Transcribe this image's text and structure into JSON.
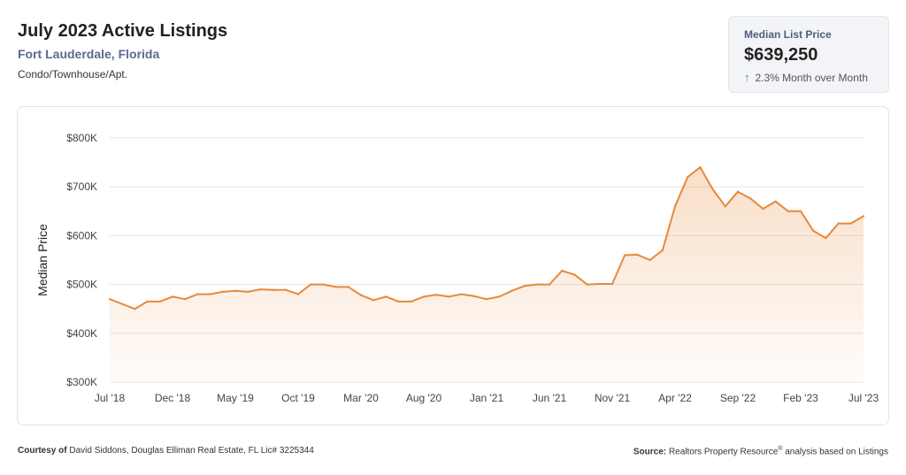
{
  "header": {
    "title": "July 2023 Active Listings",
    "location": "Fort Lauderdale, Florida",
    "property_type": "Condo/Townhouse/Apt."
  },
  "stat_card": {
    "label": "Median List Price",
    "value": "$639,250",
    "change": "2.3% Month over Month",
    "change_direction": "up",
    "change_color": "#2eaa58"
  },
  "footer": {
    "courtesy_label": "Courtesy of",
    "courtesy_text": "David Siddons, Douglas Elliman Real Estate, FL Lic# 3225344",
    "source_label": "Source:",
    "source_text_a": "Realtors Property Resource",
    "source_reg": "®",
    "source_text_b": " analysis based on Listings"
  },
  "chart_data": {
    "type": "area",
    "title": "",
    "ylabel": "Median Price",
    "xlabel": "",
    "ylim": [
      300000,
      800000
    ],
    "y_ticks": [
      {
        "value": 300000,
        "label": "$300K"
      },
      {
        "value": 400000,
        "label": "$400K"
      },
      {
        "value": 500000,
        "label": "$500K"
      },
      {
        "value": 600000,
        "label": "$600K"
      },
      {
        "value": 700000,
        "label": "$700K"
      },
      {
        "value": 800000,
        "label": "$800K"
      }
    ],
    "x_ticks": [
      {
        "index": 0,
        "label": "Jul '18"
      },
      {
        "index": 5,
        "label": "Dec '18"
      },
      {
        "index": 10,
        "label": "May '19"
      },
      {
        "index": 15,
        "label": "Oct '19"
      },
      {
        "index": 20,
        "label": "Mar '20"
      },
      {
        "index": 25,
        "label": "Aug '20"
      },
      {
        "index": 30,
        "label": "Jan '21"
      },
      {
        "index": 35,
        "label": "Jun '21"
      },
      {
        "index": 40,
        "label": "Nov '21"
      },
      {
        "index": 45,
        "label": "Apr '22"
      },
      {
        "index": 50,
        "label": "Sep '22"
      },
      {
        "index": 55,
        "label": "Feb '23"
      },
      {
        "index": 60,
        "label": "Jul '23"
      }
    ],
    "line_color": "#e8893a",
    "grid": true,
    "series": [
      {
        "values": [
          470000,
          460000,
          450000,
          465000,
          465000,
          475000,
          470000,
          480000,
          480000,
          485000,
          487000,
          485000,
          490000,
          489000,
          489000,
          480000,
          500000,
          500000,
          495000,
          495000,
          478000,
          468000,
          475000,
          465000,
          465000,
          475000,
          479000,
          475000,
          480000,
          476000,
          470000,
          475000,
          487000,
          497000,
          500000,
          500000,
          528000,
          520000,
          500000,
          501000,
          501000,
          560000,
          561000,
          550000,
          570000,
          660000,
          720000,
          740000,
          695000,
          660000,
          690000,
          676000,
          655000,
          670000,
          650000,
          650000,
          610000,
          595000,
          625000,
          625000,
          640000
        ]
      }
    ]
  }
}
